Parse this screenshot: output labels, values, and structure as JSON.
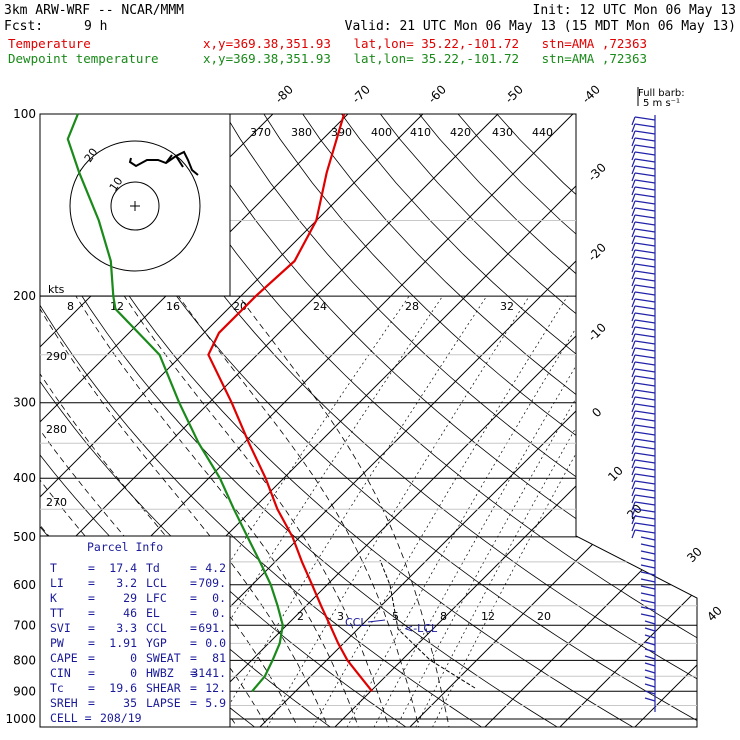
{
  "header": {
    "model": "3km ARW-WRF -- NCAR/MMM",
    "init": "Init: 12 UTC Mon 06 May 13",
    "fcst_label": "Fcst:",
    "fcst_value": "9 h",
    "valid": "Valid: 21 UTC Mon 06 May 13 (15 MDT Mon 06 May 13)",
    "temp_label": "Temperature",
    "temp_loc": "x,y=369.38,351.93   lat,lon= 35.22,-101.72   stn=AMA ,72363",
    "dew_label": "Dewpoint temperature",
    "dew_loc": "x,y=369.38,351.93   lat,lon= 35.22,-101.72   stn=AMA ,72363"
  },
  "colors": {
    "temperature": "#e00000",
    "dewpoint": "#1a8a1a",
    "info_text": "#1a1a9a"
  },
  "chart_data": {
    "type": "line",
    "pressure_levels": [
      "100",
      "200",
      "300",
      "400",
      "500",
      "600",
      "700",
      "800",
      "900",
      "1000"
    ],
    "top_isotherm_labels": [
      "-80",
      "-70",
      "-60",
      "-50",
      "-40"
    ],
    "right_isotherm_labels": [
      "-30",
      "-20",
      "-10",
      "0",
      "10",
      "20",
      "30",
      "40"
    ],
    "theta_labels": [
      "370",
      "380",
      "390",
      "400",
      "410",
      "420",
      "430",
      "440"
    ],
    "mixing_ratio_labels_200": [
      "8",
      "12",
      "16",
      "20",
      "24",
      "28",
      "32"
    ],
    "mixing_ratio_labels_700": [
      "2",
      "3",
      "5",
      "8",
      "12",
      "20"
    ],
    "theta_left_labels": [
      "290",
      "280",
      "270"
    ],
    "ccl_label": "CCL",
    "lcl_label": "<-LCL",
    "series": [
      {
        "name": "Temperature",
        "points": [
          {
            "p": 900,
            "t": 20.2
          },
          {
            "p": 850,
            "t": 16.6
          },
          {
            "p": 800,
            "t": 12.8
          },
          {
            "p": 750,
            "t": 9.3
          },
          {
            "p": 700,
            "t": 5.8
          },
          {
            "p": 650,
            "t": 2.0
          },
          {
            "p": 600,
            "t": -2.0
          },
          {
            "p": 550,
            "t": -6.4
          },
          {
            "p": 500,
            "t": -11.0
          },
          {
            "p": 450,
            "t": -16.7
          },
          {
            "p": 400,
            "t": -22.4
          },
          {
            "p": 350,
            "t": -29.3
          },
          {
            "p": 300,
            "t": -37.0
          },
          {
            "p": 250,
            "t": -46.5
          },
          {
            "p": 230,
            "t": -48.0
          },
          {
            "p": 200,
            "t": -48.0
          },
          {
            "p": 175,
            "t": -47.5
          },
          {
            "p": 150,
            "t": -50.0
          },
          {
            "p": 125,
            "t": -55.0
          },
          {
            "p": 100,
            "t": -60.5
          }
        ]
      },
      {
        "name": "Dewpoint temperature",
        "points": [
          {
            "p": 900,
            "t": 4.2
          },
          {
            "p": 850,
            "t": 3.9
          },
          {
            "p": 800,
            "t": 2.8
          },
          {
            "p": 750,
            "t": 1.5
          },
          {
            "p": 700,
            "t": -0.5
          },
          {
            "p": 650,
            "t": -3.8
          },
          {
            "p": 600,
            "t": -7.5
          },
          {
            "p": 550,
            "t": -12.0
          },
          {
            "p": 500,
            "t": -17.0
          },
          {
            "p": 450,
            "t": -22.5
          },
          {
            "p": 400,
            "t": -28.5
          },
          {
            "p": 350,
            "t": -36.0
          },
          {
            "p": 300,
            "t": -44.0
          },
          {
            "p": 250,
            "t": -53.0
          },
          {
            "p": 210,
            "t": -65.0
          },
          {
            "p": 200,
            "t": -67.0
          },
          {
            "p": 175,
            "t": -72.0
          },
          {
            "p": 150,
            "t": -79.0
          },
          {
            "p": 125,
            "t": -88.0
          },
          {
            "p": 110,
            "t": -94.0
          },
          {
            "p": 100,
            "t": -96.0
          }
        ]
      }
    ],
    "hodograph_rings": [
      "10",
      "20"
    ],
    "hodograph_units": "kts",
    "wind_barb_legend": "Full barb:",
    "wind_barb_legend_value": "5 m s⁻¹",
    "parcel_info": {
      "title": "Parcel Info",
      "rows": [
        [
          "T",
          "17.4",
          "Td",
          "4.2"
        ],
        [
          "LI",
          "3.2",
          "LCL",
          "709."
        ],
        [
          "K",
          "29",
          "LFC",
          "0."
        ],
        [
          "TT",
          "46",
          "EL",
          "0."
        ],
        [
          "SVI",
          "3.3",
          "CCL",
          "691."
        ],
        [
          "PW",
          "1.91",
          "YGP",
          "0.0"
        ],
        [
          "CAPE",
          "0",
          "SWEAT",
          "81"
        ],
        [
          "CIN",
          "0",
          "HWBZ",
          "3141."
        ],
        [
          "Tc",
          "19.6",
          "SHEAR",
          "12."
        ],
        [
          "SREH",
          "35",
          "LAPSE",
          "5.9"
        ]
      ],
      "cell_label": "CELL =",
      "cell_value": "208/19"
    }
  }
}
